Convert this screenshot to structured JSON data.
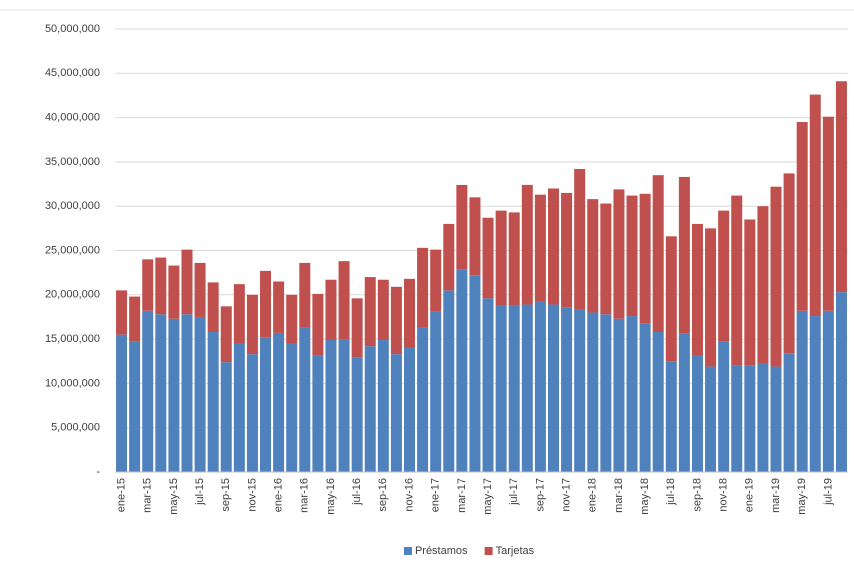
{
  "chart_data": {
    "type": "stacked_bar",
    "categories": [
      "ene-15",
      null,
      "mar-15",
      null,
      "may-15",
      null,
      "jul-15",
      null,
      "sep-15",
      null,
      "nov-15",
      null,
      "ene-16",
      null,
      "mar-16",
      null,
      "may-16",
      null,
      "jul-16",
      null,
      "sep-16",
      null,
      "nov-16",
      null,
      "ene-17",
      null,
      "mar-17",
      null,
      "may-17",
      null,
      "jul-17",
      null,
      "sep-17",
      null,
      "nov-17",
      null,
      "ene-18",
      null,
      "mar-18",
      null,
      "may-18",
      null,
      "jul-18",
      null,
      "sep-18",
      null,
      "nov-18",
      null,
      "ene-19",
      null,
      "mar-19",
      null,
      "may-19",
      null,
      "jul-19",
      null
    ],
    "series": [
      {
        "name": "Préstamos",
        "color": "#4f81bd",
        "values": [
          15500000,
          14700000,
          18200000,
          17800000,
          17300000,
          17800000,
          17500000,
          15800000,
          12400000,
          14500000,
          13300000,
          15200000,
          15700000,
          14500000,
          16300000,
          13200000,
          14900000,
          15000000,
          12900000,
          14200000,
          14900000,
          13300000,
          14000000,
          16300000,
          18100000,
          20500000,
          22900000,
          22200000,
          19600000,
          18800000,
          18800000,
          18900000,
          19200000,
          18900000,
          18600000,
          18400000,
          18000000,
          17800000,
          17300000,
          17600000,
          16800000,
          15800000,
          12500000,
          15600000,
          13100000,
          11900000,
          14700000,
          12000000,
          12000000,
          12300000,
          11900000,
          13400000,
          18200000,
          17600000,
          18200000,
          20300000
        ]
      },
      {
        "name": "Tarjetas",
        "color": "#c0504d",
        "values": [
          5000000,
          5100000,
          5800000,
          6400000,
          6000000,
          7300000,
          6100000,
          5600000,
          6300000,
          6700000,
          6700000,
          7500000,
          5800000,
          5500000,
          7300000,
          6900000,
          6800000,
          8800000,
          6700000,
          7800000,
          6800000,
          7600000,
          7800000,
          9000000,
          7000000,
          7500000,
          9500000,
          8800000,
          9100000,
          10700000,
          10500000,
          13500000,
          12100000,
          13100000,
          12900000,
          15800000,
          12800000,
          12500000,
          14600000,
          13600000,
          14600000,
          17700000,
          14100000,
          17700000,
          14900000,
          15600000,
          14800000,
          19200000,
          16500000,
          17700000,
          20300000,
          20300000,
          21300000,
          25000000,
          21900000,
          23800000
        ]
      }
    ],
    "ylim": [
      0,
      50000000
    ],
    "yticks": [
      {
        "value": 0,
        "label": "-"
      },
      {
        "value": 5000000,
        "label": "5,000,000"
      },
      {
        "value": 10000000,
        "label": "10,000,000"
      },
      {
        "value": 15000000,
        "label": "15,000,000"
      },
      {
        "value": 20000000,
        "label": "20,000,000"
      },
      {
        "value": 25000000,
        "label": "25,000,000"
      },
      {
        "value": 30000000,
        "label": "30,000,000"
      },
      {
        "value": 35000000,
        "label": "35,000,000"
      },
      {
        "value": 40000000,
        "label": "40,000,000"
      },
      {
        "value": 45000000,
        "label": "45,000,000"
      },
      {
        "value": 50000000,
        "label": "50,000,000"
      }
    ],
    "grid": true,
    "legend": "bottom"
  }
}
